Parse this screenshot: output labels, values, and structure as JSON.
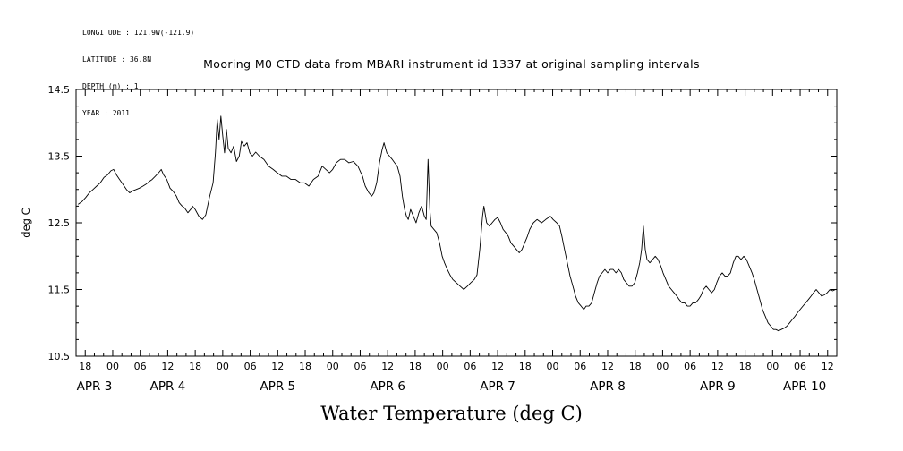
{
  "page": {
    "background": "#ffffff",
    "foreground": "#000000"
  },
  "metadata_block": {
    "lines": [
      "LONGITUDE : 121.9W(-121.9)",
      "LATITUDE : 36.8N",
      "DEPTH (m) : 1",
      "YEAR : 2011"
    ]
  },
  "title": "Mooring M0 CTD data from MBARI instrument id 1337 at original sampling intervals",
  "caption": "Water Temperature (deg C)",
  "chart_data": {
    "type": "line",
    "title": "Mooring M0 CTD data from MBARI instrument id 1337 at original sampling intervals",
    "xlabel": "Water Temperature (deg C)",
    "ylabel": "deg C",
    "grid": false,
    "legend": "none",
    "line_color": "#000000",
    "axis_color": "#000000",
    "ylim": [
      10.5,
      14.5
    ],
    "yticks": [
      10.5,
      11.5,
      12.5,
      13.5,
      14.5
    ],
    "x_unit": "hours along time axis; 6-hour ticks labeled 18/00/06/12, days APR 3 - APR 10, 2011",
    "xlim": [
      0,
      166
    ],
    "hour_ticks": [
      [
        2,
        "18"
      ],
      [
        8,
        "00"
      ],
      [
        14,
        "06"
      ],
      [
        20,
        "12"
      ],
      [
        26,
        "18"
      ],
      [
        32,
        "00"
      ],
      [
        38,
        "06"
      ],
      [
        44,
        "12"
      ],
      [
        50,
        "18"
      ],
      [
        56,
        "00"
      ],
      [
        62,
        "06"
      ],
      [
        68,
        "12"
      ],
      [
        74,
        "18"
      ],
      [
        80,
        "00"
      ],
      [
        86,
        "06"
      ],
      [
        92,
        "12"
      ],
      [
        98,
        "18"
      ],
      [
        104,
        "00"
      ],
      [
        110,
        "06"
      ],
      [
        116,
        "12"
      ],
      [
        122,
        "18"
      ],
      [
        128,
        "00"
      ],
      [
        134,
        "06"
      ],
      [
        140,
        "12"
      ],
      [
        146,
        "18"
      ],
      [
        152,
        "00"
      ],
      [
        158,
        "06"
      ],
      [
        164,
        "12"
      ]
    ],
    "date_ticks": [
      [
        4,
        "APR 3"
      ],
      [
        20,
        "APR 4"
      ],
      [
        44,
        "APR 5"
      ],
      [
        68,
        "APR 6"
      ],
      [
        92,
        "APR 7"
      ],
      [
        116,
        "APR 8"
      ],
      [
        140,
        "APR 9"
      ],
      [
        159,
        "APR 10"
      ]
    ],
    "points": [
      [
        0.5,
        12.78
      ],
      [
        1.3,
        12.82
      ],
      [
        2.1,
        12.88
      ],
      [
        2.9,
        12.95
      ],
      [
        3.7,
        13.0
      ],
      [
        4.5,
        13.05
      ],
      [
        5.3,
        13.1
      ],
      [
        6.1,
        13.18
      ],
      [
        6.9,
        13.22
      ],
      [
        7.6,
        13.28
      ],
      [
        8.2,
        13.3
      ],
      [
        8.8,
        13.22
      ],
      [
        9.5,
        13.15
      ],
      [
        10.2,
        13.08
      ],
      [
        11.0,
        13.0
      ],
      [
        11.7,
        12.95
      ],
      [
        12.4,
        12.98
      ],
      [
        13.1,
        13.0
      ],
      [
        13.8,
        13.02
      ],
      [
        14.6,
        13.05
      ],
      [
        15.3,
        13.08
      ],
      [
        16.0,
        13.12
      ],
      [
        16.6,
        13.15
      ],
      [
        17.3,
        13.2
      ],
      [
        18.0,
        13.25
      ],
      [
        18.6,
        13.3
      ],
      [
        19.1,
        13.22
      ],
      [
        19.8,
        13.15
      ],
      [
        20.5,
        13.02
      ],
      [
        21.2,
        12.97
      ],
      [
        21.9,
        12.9
      ],
      [
        22.5,
        12.8
      ],
      [
        23.0,
        12.76
      ],
      [
        23.7,
        12.72
      ],
      [
        24.4,
        12.65
      ],
      [
        25.0,
        12.7
      ],
      [
        25.4,
        12.75
      ],
      [
        26.0,
        12.7
      ],
      [
        26.8,
        12.6
      ],
      [
        27.6,
        12.55
      ],
      [
        28.3,
        12.62
      ],
      [
        29.1,
        12.88
      ],
      [
        29.9,
        13.1
      ],
      [
        30.4,
        13.55
      ],
      [
        30.8,
        14.05
      ],
      [
        31.2,
        13.75
      ],
      [
        31.6,
        14.1
      ],
      [
        32.0,
        13.8
      ],
      [
        32.4,
        13.55
      ],
      [
        32.8,
        13.9
      ],
      [
        33.2,
        13.62
      ],
      [
        33.8,
        13.55
      ],
      [
        34.4,
        13.65
      ],
      [
        35.0,
        13.42
      ],
      [
        35.6,
        13.5
      ],
      [
        36.1,
        13.72
      ],
      [
        36.7,
        13.65
      ],
      [
        37.3,
        13.7
      ],
      [
        37.9,
        13.55
      ],
      [
        38.5,
        13.5
      ],
      [
        39.2,
        13.56
      ],
      [
        40.0,
        13.5
      ],
      [
        41.0,
        13.45
      ],
      [
        42.0,
        13.35
      ],
      [
        43.0,
        13.3
      ],
      [
        43.9,
        13.25
      ],
      [
        44.9,
        13.2
      ],
      [
        45.9,
        13.2
      ],
      [
        46.9,
        13.15
      ],
      [
        47.9,
        13.15
      ],
      [
        48.9,
        13.1
      ],
      [
        49.8,
        13.1
      ],
      [
        50.8,
        13.05
      ],
      [
        51.8,
        13.15
      ],
      [
        52.8,
        13.2
      ],
      [
        53.7,
        13.35
      ],
      [
        54.5,
        13.3
      ],
      [
        55.3,
        13.25
      ],
      [
        56.0,
        13.3
      ],
      [
        56.8,
        13.4
      ],
      [
        57.7,
        13.45
      ],
      [
        58.6,
        13.45
      ],
      [
        59.5,
        13.4
      ],
      [
        60.5,
        13.42
      ],
      [
        61.5,
        13.35
      ],
      [
        62.5,
        13.2
      ],
      [
        63.1,
        13.05
      ],
      [
        63.9,
        12.95
      ],
      [
        64.5,
        12.9
      ],
      [
        65.0,
        12.95
      ],
      [
        65.6,
        13.1
      ],
      [
        66.2,
        13.4
      ],
      [
        66.8,
        13.6
      ],
      [
        67.2,
        13.7
      ],
      [
        67.8,
        13.55
      ],
      [
        68.4,
        13.5
      ],
      [
        69.0,
        13.45
      ],
      [
        69.5,
        13.4
      ],
      [
        70.1,
        13.35
      ],
      [
        70.7,
        13.2
      ],
      [
        71.2,
        12.9
      ],
      [
        71.7,
        12.7
      ],
      [
        72.1,
        12.6
      ],
      [
        72.5,
        12.55
      ],
      [
        73.0,
        12.7
      ],
      [
        73.6,
        12.6
      ],
      [
        74.2,
        12.5
      ],
      [
        74.8,
        12.65
      ],
      [
        75.4,
        12.75
      ],
      [
        76.0,
        12.6
      ],
      [
        76.4,
        12.55
      ],
      [
        76.8,
        13.45
      ],
      [
        77.2,
        12.7
      ],
      [
        77.5,
        12.45
      ],
      [
        78.1,
        12.4
      ],
      [
        78.7,
        12.35
      ],
      [
        79.3,
        12.2
      ],
      [
        79.9,
        12.0
      ],
      [
        80.4,
        11.9
      ],
      [
        81.0,
        11.8
      ],
      [
        81.6,
        11.72
      ],
      [
        82.2,
        11.65
      ],
      [
        83.0,
        11.6
      ],
      [
        83.8,
        11.55
      ],
      [
        84.6,
        11.5
      ],
      [
        85.4,
        11.55
      ],
      [
        86.1,
        11.6
      ],
      [
        86.9,
        11.65
      ],
      [
        87.5,
        11.72
      ],
      [
        88.1,
        12.1
      ],
      [
        88.7,
        12.6
      ],
      [
        89.0,
        12.75
      ],
      [
        89.6,
        12.5
      ],
      [
        90.2,
        12.45
      ],
      [
        90.8,
        12.5
      ],
      [
        91.4,
        12.55
      ],
      [
        92.0,
        12.58
      ],
      [
        92.6,
        12.5
      ],
      [
        93.2,
        12.4
      ],
      [
        93.8,
        12.35
      ],
      [
        94.3,
        12.3
      ],
      [
        94.9,
        12.2
      ],
      [
        95.5,
        12.15
      ],
      [
        96.1,
        12.1
      ],
      [
        96.7,
        12.05
      ],
      [
        97.3,
        12.1
      ],
      [
        97.9,
        12.2
      ],
      [
        98.5,
        12.3
      ],
      [
        99.0,
        12.4
      ],
      [
        99.8,
        12.5
      ],
      [
        100.6,
        12.55
      ],
      [
        101.6,
        12.5
      ],
      [
        102.5,
        12.55
      ],
      [
        103.5,
        12.6
      ],
      [
        104.1,
        12.55
      ],
      [
        104.9,
        12.5
      ],
      [
        105.5,
        12.45
      ],
      [
        106.0,
        12.3
      ],
      [
        106.6,
        12.1
      ],
      [
        107.2,
        11.9
      ],
      [
        107.8,
        11.7
      ],
      [
        108.4,
        11.55
      ],
      [
        109.0,
        11.4
      ],
      [
        109.6,
        11.3
      ],
      [
        110.2,
        11.25
      ],
      [
        110.8,
        11.2
      ],
      [
        111.3,
        11.25
      ],
      [
        111.9,
        11.25
      ],
      [
        112.5,
        11.3
      ],
      [
        113.1,
        11.45
      ],
      [
        113.7,
        11.6
      ],
      [
        114.2,
        11.7
      ],
      [
        114.8,
        11.75
      ],
      [
        115.4,
        11.8
      ],
      [
        116.0,
        11.75
      ],
      [
        116.6,
        11.8
      ],
      [
        117.2,
        11.8
      ],
      [
        117.8,
        11.75
      ],
      [
        118.4,
        11.8
      ],
      [
        119.0,
        11.75
      ],
      [
        119.5,
        11.65
      ],
      [
        120.1,
        11.6
      ],
      [
        120.7,
        11.55
      ],
      [
        121.3,
        11.55
      ],
      [
        121.9,
        11.6
      ],
      [
        122.5,
        11.75
      ],
      [
        123.0,
        11.9
      ],
      [
        123.4,
        12.1
      ],
      [
        123.8,
        12.45
      ],
      [
        124.2,
        12.1
      ],
      [
        124.6,
        11.95
      ],
      [
        125.2,
        11.9
      ],
      [
        125.8,
        11.95
      ],
      [
        126.4,
        12.0
      ],
      [
        127.0,
        11.95
      ],
      [
        127.6,
        11.85
      ],
      [
        128.1,
        11.75
      ],
      [
        128.7,
        11.65
      ],
      [
        129.3,
        11.55
      ],
      [
        129.9,
        11.5
      ],
      [
        130.5,
        11.45
      ],
      [
        131.1,
        11.4
      ],
      [
        131.6,
        11.35
      ],
      [
        132.2,
        11.3
      ],
      [
        132.8,
        11.3
      ],
      [
        133.4,
        11.25
      ],
      [
        134.0,
        11.25
      ],
      [
        134.6,
        11.3
      ],
      [
        135.2,
        11.3
      ],
      [
        135.8,
        11.35
      ],
      [
        136.3,
        11.4
      ],
      [
        136.9,
        11.5
      ],
      [
        137.5,
        11.55
      ],
      [
        138.1,
        11.5
      ],
      [
        138.7,
        11.45
      ],
      [
        139.3,
        11.5
      ],
      [
        139.8,
        11.6
      ],
      [
        140.4,
        11.7
      ],
      [
        141.0,
        11.75
      ],
      [
        141.6,
        11.7
      ],
      [
        142.2,
        11.7
      ],
      [
        142.8,
        11.75
      ],
      [
        143.4,
        11.9
      ],
      [
        144.0,
        12.0
      ],
      [
        144.5,
        12.0
      ],
      [
        145.1,
        11.95
      ],
      [
        145.7,
        12.0
      ],
      [
        146.3,
        11.95
      ],
      [
        146.9,
        11.85
      ],
      [
        147.5,
        11.75
      ],
      [
        148.0,
        11.65
      ],
      [
        148.6,
        11.5
      ],
      [
        149.2,
        11.35
      ],
      [
        149.8,
        11.2
      ],
      [
        150.4,
        11.1
      ],
      [
        151.0,
        11.0
      ],
      [
        151.6,
        10.95
      ],
      [
        152.2,
        10.9
      ],
      [
        152.7,
        10.9
      ],
      [
        153.3,
        10.88
      ],
      [
        153.9,
        10.9
      ],
      [
        154.5,
        10.92
      ],
      [
        155.1,
        10.95
      ],
      [
        155.7,
        11.0
      ],
      [
        156.3,
        11.05
      ],
      [
        156.9,
        11.1
      ],
      [
        157.4,
        11.15
      ],
      [
        158.0,
        11.2
      ],
      [
        158.6,
        11.25
      ],
      [
        159.2,
        11.3
      ],
      [
        159.8,
        11.35
      ],
      [
        160.4,
        11.4
      ],
      [
        160.9,
        11.45
      ],
      [
        161.5,
        11.5
      ],
      [
        162.1,
        11.45
      ],
      [
        162.7,
        11.4
      ],
      [
        163.3,
        11.42
      ],
      [
        163.9,
        11.45
      ],
      [
        164.5,
        11.5
      ],
      [
        165.1,
        11.48
      ],
      [
        165.7,
        11.5
      ]
    ]
  }
}
